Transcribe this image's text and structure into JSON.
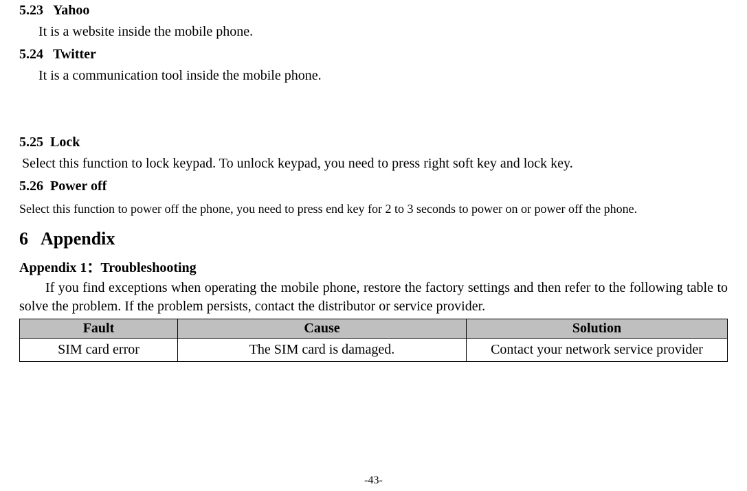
{
  "sections": {
    "s523": {
      "num": "5.23",
      "title": "Yahoo",
      "body": "It is a website inside the mobile phone."
    },
    "s524": {
      "num": "5.24",
      "title": "Twitter",
      "body": "It is a communication tool inside the mobile phone."
    },
    "s525": {
      "num": "5.25",
      "title": "Lock",
      "body": "Select this function to lock keypad. To unlock keypad, you need to press right soft key and lock key."
    },
    "s526": {
      "num": "5.26",
      "title": "Power off",
      "body": "Select this function to power off the phone, you need to press end key for 2 to 3 seconds to power on or power off the phone."
    }
  },
  "chapter": {
    "num": "6",
    "title": "Appendix"
  },
  "appendix": {
    "heading": "Appendix 1：Troubleshooting",
    "intro": "If you find exceptions when operating the mobile phone, restore the factory settings and then refer to the following table to solve the problem. If the problem persists, contact the distributor or service provider."
  },
  "table": {
    "headers": {
      "fault": "Fault",
      "cause": "Cause",
      "solution": "Solution"
    },
    "row1": {
      "fault": "SIM card error",
      "cause": "The SIM card is damaged.",
      "solution": "Contact your network service provider"
    }
  },
  "colors": {
    "text": "#000000",
    "table_header_bg": "#bfbfbf",
    "table_border": "#000000",
    "page_bg": "#ffffff"
  },
  "page_number": "-43-"
}
